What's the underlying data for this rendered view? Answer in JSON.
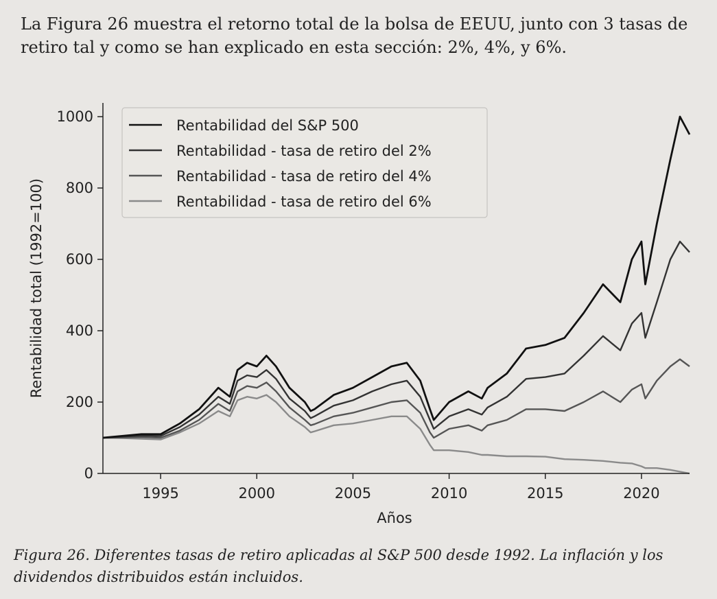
{
  "page": {
    "intro_text": "La Figura 26 muestra el retorno total de la bolsa de EEUU, junto con 3 tasas de retiro tal y como se han explicado en esta sección: 2%, 4%, y 6%.",
    "caption": "Figura 26. Diferentes tasas de retiro aplicadas al S&P 500 desde 1992. La inflación y los dividendos distribuidos están incluidos."
  },
  "chart_data": {
    "type": "line",
    "title": "",
    "xlabel": "Años",
    "ylabel": "Rentabilidad total (1992=100)",
    "xlim": [
      1992,
      2022.5
    ],
    "ylim": [
      0,
      1000
    ],
    "xticks": [
      1995,
      2000,
      2005,
      2010,
      2015,
      2020
    ],
    "yticks": [
      0,
      200,
      400,
      600,
      800,
      1000
    ],
    "grid": false,
    "legend_position": "top-left",
    "series": [
      {
        "name": "Rentabilidad del S&P 500",
        "color": "#111111",
        "points": [
          [
            1992.0,
            100
          ],
          [
            1993.0,
            105
          ],
          [
            1994.0,
            110
          ],
          [
            1995.0,
            110
          ],
          [
            1996.0,
            140
          ],
          [
            1997.0,
            180
          ],
          [
            1998.0,
            240
          ],
          [
            1998.6,
            215
          ],
          [
            1999.0,
            290
          ],
          [
            1999.5,
            310
          ],
          [
            2000.0,
            300
          ],
          [
            2000.5,
            330
          ],
          [
            2001.0,
            300
          ],
          [
            2001.7,
            240
          ],
          [
            2002.5,
            200
          ],
          [
            2002.8,
            175
          ],
          [
            2003.0,
            180
          ],
          [
            2004.0,
            220
          ],
          [
            2005.0,
            240
          ],
          [
            2006.0,
            270
          ],
          [
            2007.0,
            300
          ],
          [
            2007.8,
            310
          ],
          [
            2008.5,
            260
          ],
          [
            2009.0,
            180
          ],
          [
            2009.2,
            150
          ],
          [
            2010.0,
            200
          ],
          [
            2011.0,
            230
          ],
          [
            2011.7,
            210
          ],
          [
            2012.0,
            240
          ],
          [
            2013.0,
            280
          ],
          [
            2014.0,
            350
          ],
          [
            2015.0,
            360
          ],
          [
            2016.0,
            380
          ],
          [
            2017.0,
            450
          ],
          [
            2018.0,
            530
          ],
          [
            2018.9,
            480
          ],
          [
            2019.5,
            600
          ],
          [
            2020.0,
            650
          ],
          [
            2020.2,
            530
          ],
          [
            2020.8,
            700
          ],
          [
            2021.5,
            880
          ],
          [
            2022.0,
            1000
          ],
          [
            2022.5,
            950
          ]
        ]
      },
      {
        "name": "Rentabilidad - tasa de retiro del 2%",
        "color": "#333333",
        "points": [
          [
            1992.0,
            100
          ],
          [
            1993.0,
            103
          ],
          [
            1994.0,
            106
          ],
          [
            1995.0,
            105
          ],
          [
            1996.0,
            130
          ],
          [
            1997.0,
            165
          ],
          [
            1998.0,
            215
          ],
          [
            1998.6,
            195
          ],
          [
            1999.0,
            260
          ],
          [
            1999.5,
            275
          ],
          [
            2000.0,
            270
          ],
          [
            2000.5,
            290
          ],
          [
            2001.0,
            265
          ],
          [
            2001.7,
            210
          ],
          [
            2002.5,
            175
          ],
          [
            2002.8,
            155
          ],
          [
            2003.0,
            160
          ],
          [
            2004.0,
            190
          ],
          [
            2005.0,
            205
          ],
          [
            2006.0,
            230
          ],
          [
            2007.0,
            250
          ],
          [
            2007.8,
            260
          ],
          [
            2008.5,
            215
          ],
          [
            2009.0,
            150
          ],
          [
            2009.2,
            125
          ],
          [
            2010.0,
            160
          ],
          [
            2011.0,
            180
          ],
          [
            2011.7,
            165
          ],
          [
            2012.0,
            185
          ],
          [
            2013.0,
            215
          ],
          [
            2014.0,
            265
          ],
          [
            2015.0,
            270
          ],
          [
            2016.0,
            280
          ],
          [
            2017.0,
            330
          ],
          [
            2018.0,
            385
          ],
          [
            2018.9,
            345
          ],
          [
            2019.5,
            420
          ],
          [
            2020.0,
            450
          ],
          [
            2020.2,
            380
          ],
          [
            2020.8,
            480
          ],
          [
            2021.5,
            600
          ],
          [
            2022.0,
            650
          ],
          [
            2022.5,
            620
          ]
        ]
      },
      {
        "name": "Rentabilidad - tasa de retiro del 4%",
        "color": "#555555",
        "points": [
          [
            1992.0,
            100
          ],
          [
            1993.0,
            101
          ],
          [
            1994.0,
            102
          ],
          [
            1995.0,
            100
          ],
          [
            1996.0,
            120
          ],
          [
            1997.0,
            150
          ],
          [
            1998.0,
            195
          ],
          [
            1998.6,
            175
          ],
          [
            1999.0,
            230
          ],
          [
            1999.5,
            245
          ],
          [
            2000.0,
            240
          ],
          [
            2000.5,
            255
          ],
          [
            2001.0,
            230
          ],
          [
            2001.7,
            185
          ],
          [
            2002.5,
            150
          ],
          [
            2002.8,
            135
          ],
          [
            2003.0,
            138
          ],
          [
            2004.0,
            160
          ],
          [
            2005.0,
            170
          ],
          [
            2006.0,
            185
          ],
          [
            2007.0,
            200
          ],
          [
            2007.8,
            205
          ],
          [
            2008.5,
            170
          ],
          [
            2009.0,
            115
          ],
          [
            2009.2,
            100
          ],
          [
            2010.0,
            125
          ],
          [
            2011.0,
            135
          ],
          [
            2011.7,
            120
          ],
          [
            2012.0,
            135
          ],
          [
            2013.0,
            150
          ],
          [
            2014.0,
            180
          ],
          [
            2015.0,
            180
          ],
          [
            2016.0,
            175
          ],
          [
            2017.0,
            200
          ],
          [
            2018.0,
            230
          ],
          [
            2018.9,
            200
          ],
          [
            2019.5,
            235
          ],
          [
            2020.0,
            250
          ],
          [
            2020.2,
            210
          ],
          [
            2020.8,
            260
          ],
          [
            2021.5,
            300
          ],
          [
            2022.0,
            320
          ],
          [
            2022.5,
            300
          ]
        ]
      },
      {
        "name": "Rentabilidad - tasa de retiro del 6%",
        "color": "#8a8a8a",
        "points": [
          [
            1992.0,
            100
          ],
          [
            1993.0,
            99
          ],
          [
            1994.0,
            97
          ],
          [
            1995.0,
            95
          ],
          [
            1996.0,
            115
          ],
          [
            1997.0,
            140
          ],
          [
            1998.0,
            175
          ],
          [
            1998.6,
            160
          ],
          [
            1999.0,
            205
          ],
          [
            1999.5,
            215
          ],
          [
            2000.0,
            210
          ],
          [
            2000.5,
            220
          ],
          [
            2001.0,
            200
          ],
          [
            2001.7,
            160
          ],
          [
            2002.5,
            130
          ],
          [
            2002.8,
            115
          ],
          [
            2003.0,
            118
          ],
          [
            2004.0,
            135
          ],
          [
            2005.0,
            140
          ],
          [
            2006.0,
            150
          ],
          [
            2007.0,
            160
          ],
          [
            2007.8,
            160
          ],
          [
            2008.5,
            125
          ],
          [
            2009.0,
            80
          ],
          [
            2009.2,
            65
          ],
          [
            2010.0,
            65
          ],
          [
            2011.0,
            60
          ],
          [
            2011.7,
            52
          ],
          [
            2012.0,
            52
          ],
          [
            2013.0,
            48
          ],
          [
            2014.0,
            48
          ],
          [
            2015.0,
            47
          ],
          [
            2016.0,
            40
          ],
          [
            2017.0,
            38
          ],
          [
            2018.0,
            35
          ],
          [
            2018.9,
            30
          ],
          [
            2019.5,
            28
          ],
          [
            2020.0,
            20
          ],
          [
            2020.2,
            15
          ],
          [
            2020.8,
            15
          ],
          [
            2021.5,
            10
          ],
          [
            2022.0,
            5
          ],
          [
            2022.5,
            0
          ]
        ]
      }
    ]
  }
}
